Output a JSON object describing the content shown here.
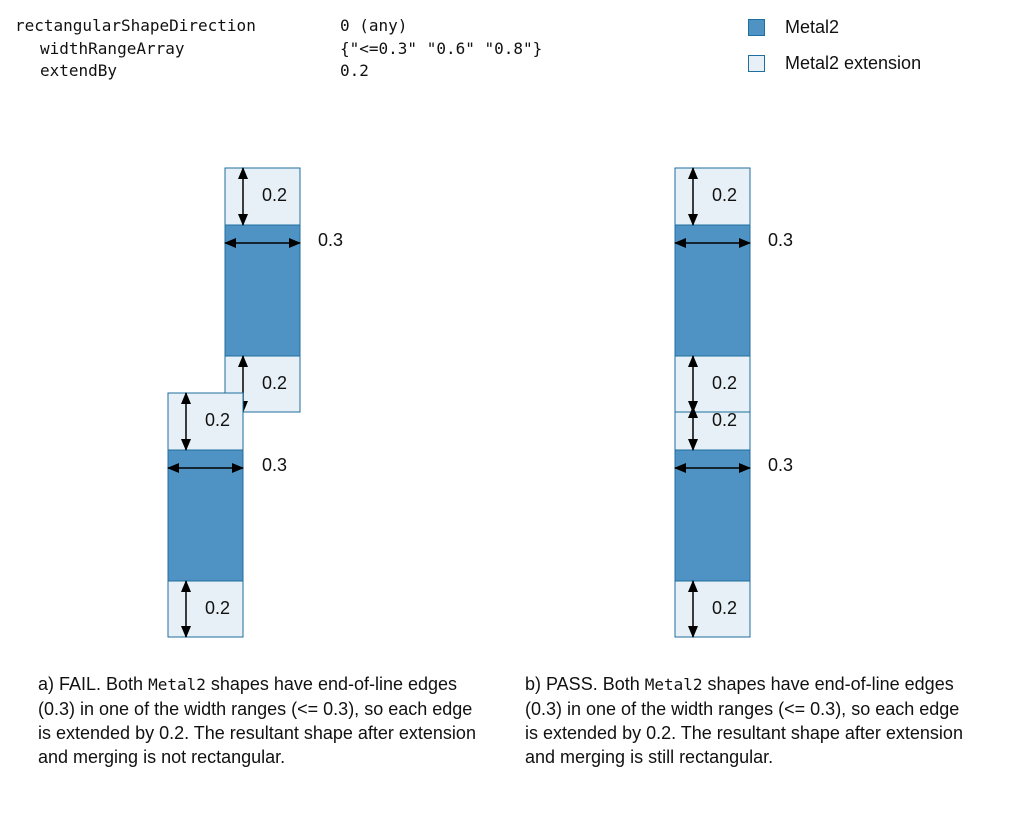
{
  "params": [
    {
      "key": "rectangularShapeDirection",
      "value": "0 (any)"
    },
    {
      "key": "widthRangeArray",
      "value": "{\"<=0.3\" \"0.6\" \"0.8\"}"
    },
    {
      "key": "extendBy",
      "value": "0.2"
    }
  ],
  "legend": [
    {
      "label": "Metal2",
      "color": "#4f93c4"
    },
    {
      "label": "Metal2 extension",
      "color": "#e6f0f6"
    }
  ],
  "diagram": {
    "ext_label": "0.2",
    "width_label": "0.3"
  },
  "captions": {
    "a": {
      "pre": "a) FAIL. Both ",
      "code": "Metal2",
      "post": " shapes have end-of-line edges (0.3) in one of the width ranges (<= 0.3), so each edge is extended by 0.2. The resultant shape after extension and merging is not rectangular."
    },
    "b": {
      "pre": "b) PASS. Both ",
      "code": "Metal2",
      "post": " shapes have end-of-line edges (0.3) in one of the width ranges (<= 0.3), so each edge is extended by 0.2. The resultant shape after extension and merging is still rectangular."
    }
  }
}
